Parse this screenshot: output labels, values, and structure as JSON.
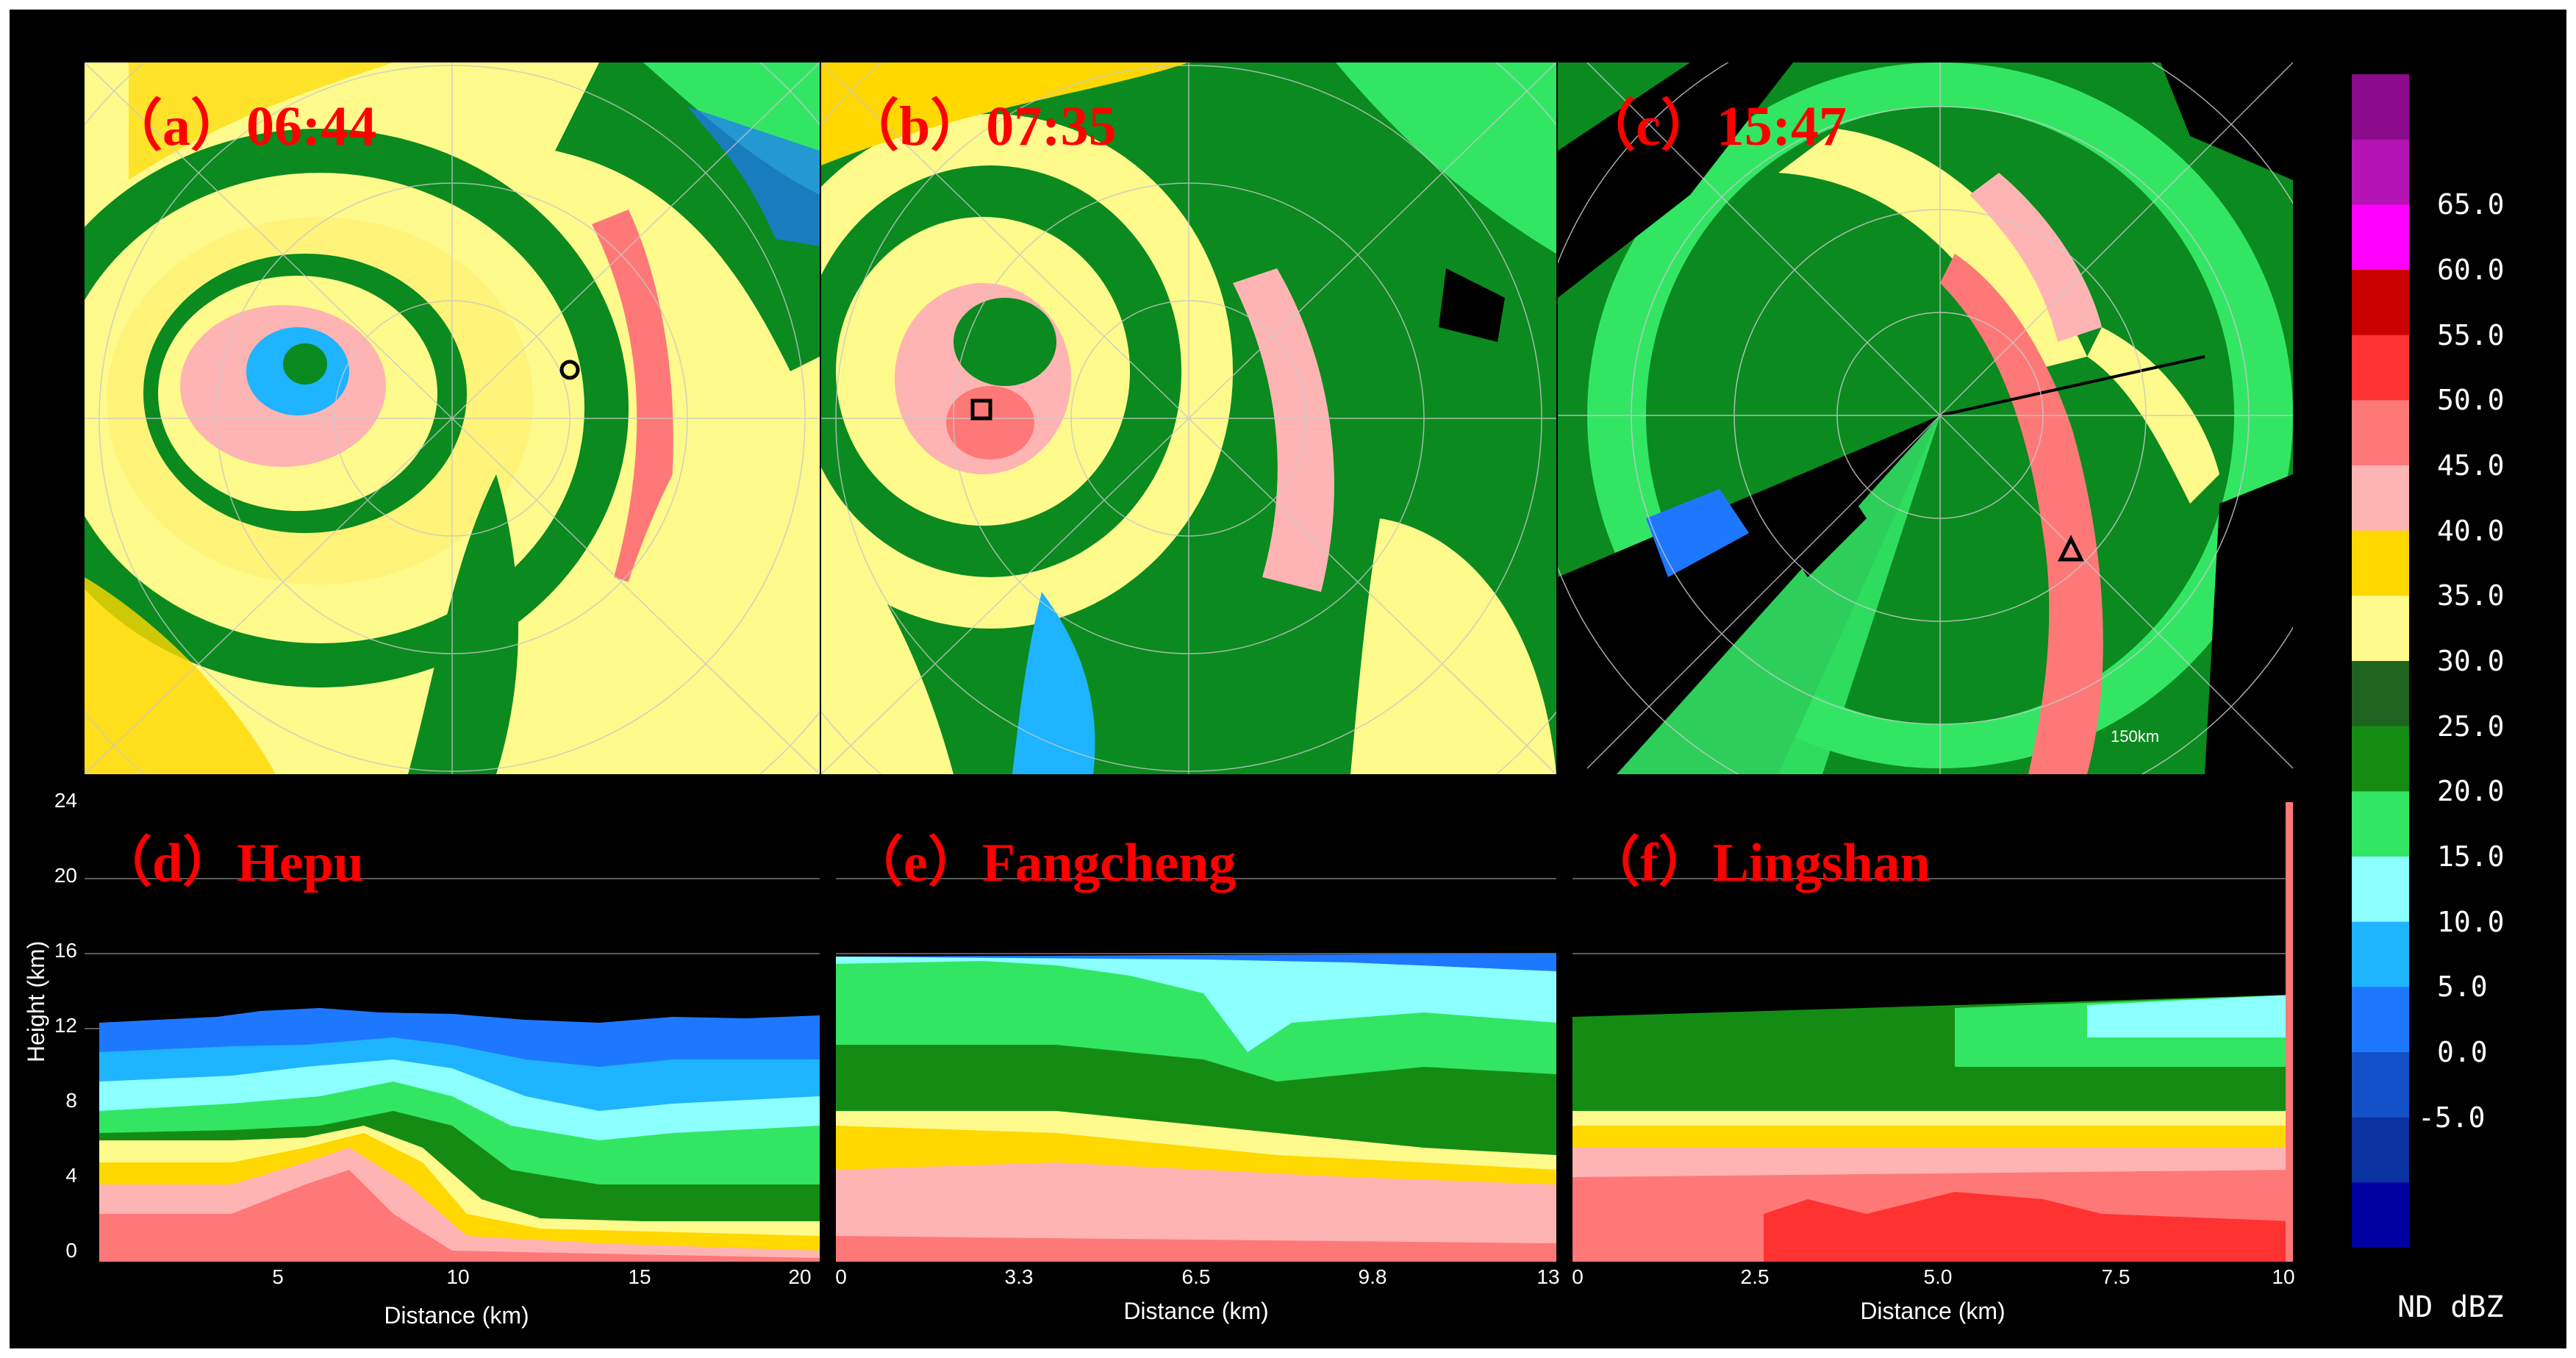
{
  "panels_top": [
    {
      "label": "（a）06:44",
      "marker": "circle-marker"
    },
    {
      "label": "（b）07:35",
      "marker": "square-marker"
    },
    {
      "label": "（c）15:47",
      "marker": "triangle-marker",
      "range_text": "150km"
    }
  ],
  "panels_bottom": [
    {
      "label": "（d）Hepu",
      "xticks": [
        "5",
        "10",
        "15",
        "20"
      ]
    },
    {
      "label": "（e）Fangcheng",
      "xticks": [
        "0",
        "3.3",
        "6.5",
        "9.8",
        "13"
      ]
    },
    {
      "label": "（f）Lingshan",
      "xticks": [
        "0",
        "2.5",
        "5.0",
        "7.5",
        "10"
      ]
    }
  ],
  "yticks": [
    "24",
    "20",
    "16",
    "12",
    "8",
    "4",
    "0"
  ],
  "ylabel": "Height (km)",
  "xlabel": "Distance (km)",
  "colorbar": {
    "ticks": [
      "65.0",
      "60.0",
      "55.0",
      "50.0",
      "45.0",
      "40.0",
      "35.0",
      "30.0",
      "25.0",
      "20.0",
      "15.0",
      "10.0",
      "5.0",
      "0.0",
      "-5.0"
    ],
    "colors": [
      "#8c0a8c",
      "#b414b4",
      "#ff00ff",
      "#c80000",
      "#ff3232",
      "#ff7878",
      "#ffb4b4",
      "#ffd800",
      "#fffa8c",
      "#1e641e",
      "#148c14",
      "#32e664",
      "#8cffff",
      "#1eb4ff",
      "#1e78ff",
      "#1450c8",
      "#0a32a0",
      "#0000a0"
    ],
    "units": "ND  dBZ"
  }
}
